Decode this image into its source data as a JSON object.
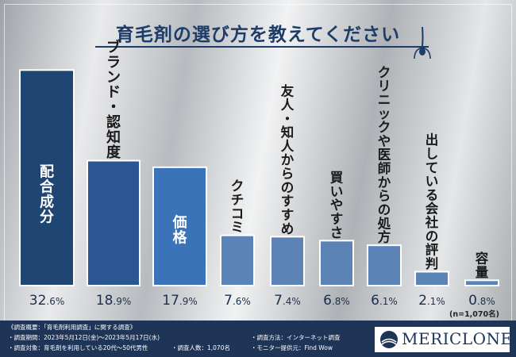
{
  "title": "育毛剤の選び方を教えてください",
  "chart_data": {
    "type": "bar",
    "categories": [
      "配合成分",
      "ブランド・認知度",
      "価格",
      "クチコミ",
      "友人・知人からのすすめ",
      "買いやすさ",
      "クリニックや医師からの処方",
      "出している会社の評判",
      "容量"
    ],
    "values": [
      32.6,
      18.9,
      17.9,
      7.6,
      7.4,
      6.8,
      6.1,
      2.1,
      0.8
    ],
    "value_labels": [
      {
        "int": "32",
        "dec": ".6",
        "unit": "%"
      },
      {
        "int": "18",
        "dec": ".9",
        "unit": "%"
      },
      {
        "int": "17",
        "dec": ".9",
        "unit": "%"
      },
      {
        "int": "7",
        "dec": ".6",
        "unit": "%"
      },
      {
        "int": "7",
        "dec": ".4",
        "unit": "%"
      },
      {
        "int": "6",
        "dec": ".8",
        "unit": "%"
      },
      {
        "int": "6",
        "dec": ".1",
        "unit": "%"
      },
      {
        "int": "2",
        "dec": ".1",
        "unit": "%"
      },
      {
        "int": "0",
        "dec": ".8",
        "unit": "%"
      }
    ],
    "colors": [
      "#1f4573",
      "#2a5791",
      "#3b73b9",
      "#5b83b6",
      "#5b83b6",
      "#5b83b6",
      "#5b83b6",
      "#5b83b6",
      "#5b83b6"
    ],
    "label_color_inside": "#ffffff",
    "label_color_above": "#1a1a1a",
    "n_label": "(n=1,070名)",
    "ylim": [
      0,
      33
    ]
  },
  "footer": {
    "line1": "《調査概要：「育毛剤利用調査」に関する調査》",
    "period": "・調査期間：2023年5月12日(金)〜2023年5月17日(水)",
    "target": "・調査対象：育毛剤を利用している20代〜50代男性",
    "people": "・調査人数：1,070名",
    "method": "・調査方法：インターネット調査",
    "provider": "・モニター提供元：Find Wow"
  },
  "logo": {
    "text": "MERICLONE"
  },
  "accent_color": "#1d3c68"
}
